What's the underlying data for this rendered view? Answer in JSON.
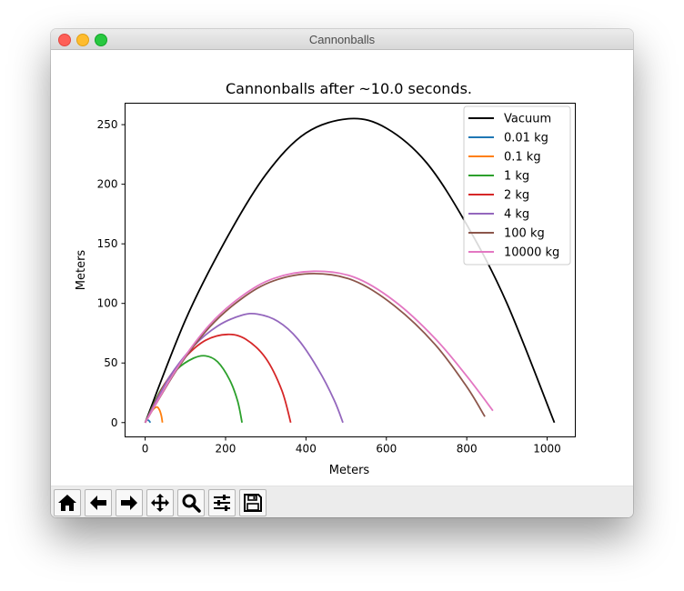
{
  "window": {
    "title": "Cannonballs"
  },
  "toolbar": {
    "buttons": [
      {
        "name": "home-button",
        "icon": "home-icon"
      },
      {
        "name": "back-button",
        "icon": "arrow-left-icon"
      },
      {
        "name": "forward-button",
        "icon": "arrow-right-icon"
      },
      {
        "name": "pan-button",
        "icon": "move-icon"
      },
      {
        "name": "zoom-button",
        "icon": "magnifier-icon"
      },
      {
        "name": "configure-subplots-button",
        "icon": "sliders-icon"
      },
      {
        "name": "save-button",
        "icon": "floppy-disk-icon"
      }
    ]
  },
  "chart_data": {
    "type": "line",
    "title": "Cannonballs after ~10.0 seconds.",
    "xlabel": "Meters",
    "ylabel": "Meters",
    "xlim": [
      -50,
      1070
    ],
    "ylim": [
      -12,
      268
    ],
    "xticks": [
      0,
      200,
      400,
      600,
      800,
      1000
    ],
    "yticks": [
      0,
      50,
      100,
      150,
      200,
      250
    ],
    "grid": false,
    "legend_position": "top-right",
    "series": [
      {
        "name": "Vacuum",
        "color": "#000000",
        "points": [
          [
            0,
            0
          ],
          [
            100,
            86
          ],
          [
            200,
            153
          ],
          [
            300,
            208
          ],
          [
            400,
            243
          ],
          [
            510,
            255
          ],
          [
            600,
            247
          ],
          [
            700,
            218
          ],
          [
            800,
            166
          ],
          [
            900,
            100
          ],
          [
            1018,
            0
          ]
        ]
      },
      {
        "name": "0.01 kg",
        "color": "#1f77b4",
        "points": [
          [
            0,
            0
          ],
          [
            4,
            2
          ],
          [
            8,
            2
          ],
          [
            11,
            1
          ],
          [
            13,
            0
          ]
        ]
      },
      {
        "name": "0.1 kg",
        "color": "#ff7f0e",
        "points": [
          [
            0,
            0
          ],
          [
            15,
            9
          ],
          [
            28,
            13
          ],
          [
            35,
            11
          ],
          [
            40,
            6
          ],
          [
            43,
            0
          ]
        ]
      },
      {
        "name": "1 kg",
        "color": "#2ca02c",
        "points": [
          [
            0,
            0
          ],
          [
            40,
            28
          ],
          [
            80,
            45
          ],
          [
            120,
            54
          ],
          [
            150,
            56
          ],
          [
            180,
            51
          ],
          [
            210,
            36
          ],
          [
            230,
            18
          ],
          [
            241,
            0
          ]
        ]
      },
      {
        "name": "2 kg",
        "color": "#d62728",
        "points": [
          [
            0,
            0
          ],
          [
            50,
            33
          ],
          [
            100,
            55
          ],
          [
            150,
            69
          ],
          [
            205,
            74
          ],
          [
            250,
            70
          ],
          [
            300,
            54
          ],
          [
            340,
            27
          ],
          [
            362,
            0
          ]
        ]
      },
      {
        "name": "4 kg",
        "color": "#9467bd",
        "points": [
          [
            0,
            0
          ],
          [
            60,
            38
          ],
          [
            120,
            64
          ],
          [
            180,
            81
          ],
          [
            240,
            90
          ],
          [
            280,
            91
          ],
          [
            330,
            85
          ],
          [
            380,
            70
          ],
          [
            430,
            45
          ],
          [
            470,
            19
          ],
          [
            492,
            0
          ]
        ]
      },
      {
        "name": "100 kg",
        "color": "#8c564b",
        "points": [
          [
            0,
            0
          ],
          [
            80,
            45
          ],
          [
            160,
            80
          ],
          [
            240,
            104
          ],
          [
            320,
            119
          ],
          [
            420,
            125
          ],
          [
            520,
            119
          ],
          [
            620,
            98
          ],
          [
            720,
            66
          ],
          [
            800,
            30
          ],
          [
            845,
            5
          ]
        ]
      },
      {
        "name": "10000 kg",
        "color": "#e377c2",
        "points": [
          [
            0,
            0
          ],
          [
            80,
            46
          ],
          [
            160,
            82
          ],
          [
            240,
            106
          ],
          [
            320,
            121
          ],
          [
            420,
            127
          ],
          [
            520,
            122
          ],
          [
            620,
            102
          ],
          [
            720,
            71
          ],
          [
            800,
            39
          ],
          [
            865,
            10
          ]
        ]
      }
    ]
  }
}
